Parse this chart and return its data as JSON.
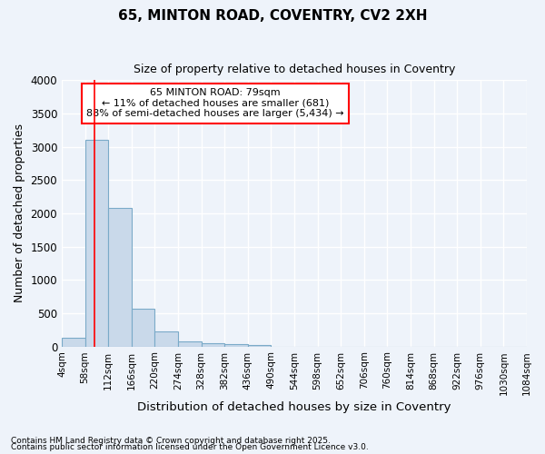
{
  "title1": "65, MINTON ROAD, COVENTRY, CV2 2XH",
  "title2": "Size of property relative to detached houses in Coventry",
  "xlabel": "Distribution of detached houses by size in Coventry",
  "ylabel": "Number of detached properties",
  "bins": [
    4,
    58,
    112,
    166,
    220,
    274,
    328,
    382,
    436,
    490,
    544,
    598,
    652,
    706,
    760,
    814,
    868,
    922,
    976,
    1030,
    1084
  ],
  "bar_heights": [
    130,
    3100,
    2080,
    570,
    220,
    70,
    45,
    35,
    20,
    0,
    0,
    0,
    0,
    0,
    0,
    0,
    0,
    0,
    0,
    0
  ],
  "bar_color": "#c9d9ea",
  "bar_edge_color": "#7aaac8",
  "bg_color": "#eef3fa",
  "grid_color": "#ffffff",
  "red_line_x": 79,
  "annotation_lines": [
    "65 MINTON ROAD: 79sqm",
    "← 11% of detached houses are smaller (681)",
    "88% of semi-detached houses are larger (5,434) →"
  ],
  "ylim": [
    0,
    4000
  ],
  "yticks": [
    0,
    500,
    1000,
    1500,
    2000,
    2500,
    3000,
    3500,
    4000
  ],
  "footnote1": "Contains HM Land Registry data © Crown copyright and database right 2025.",
  "footnote2": "Contains public sector information licensed under the Open Government Licence v3.0."
}
